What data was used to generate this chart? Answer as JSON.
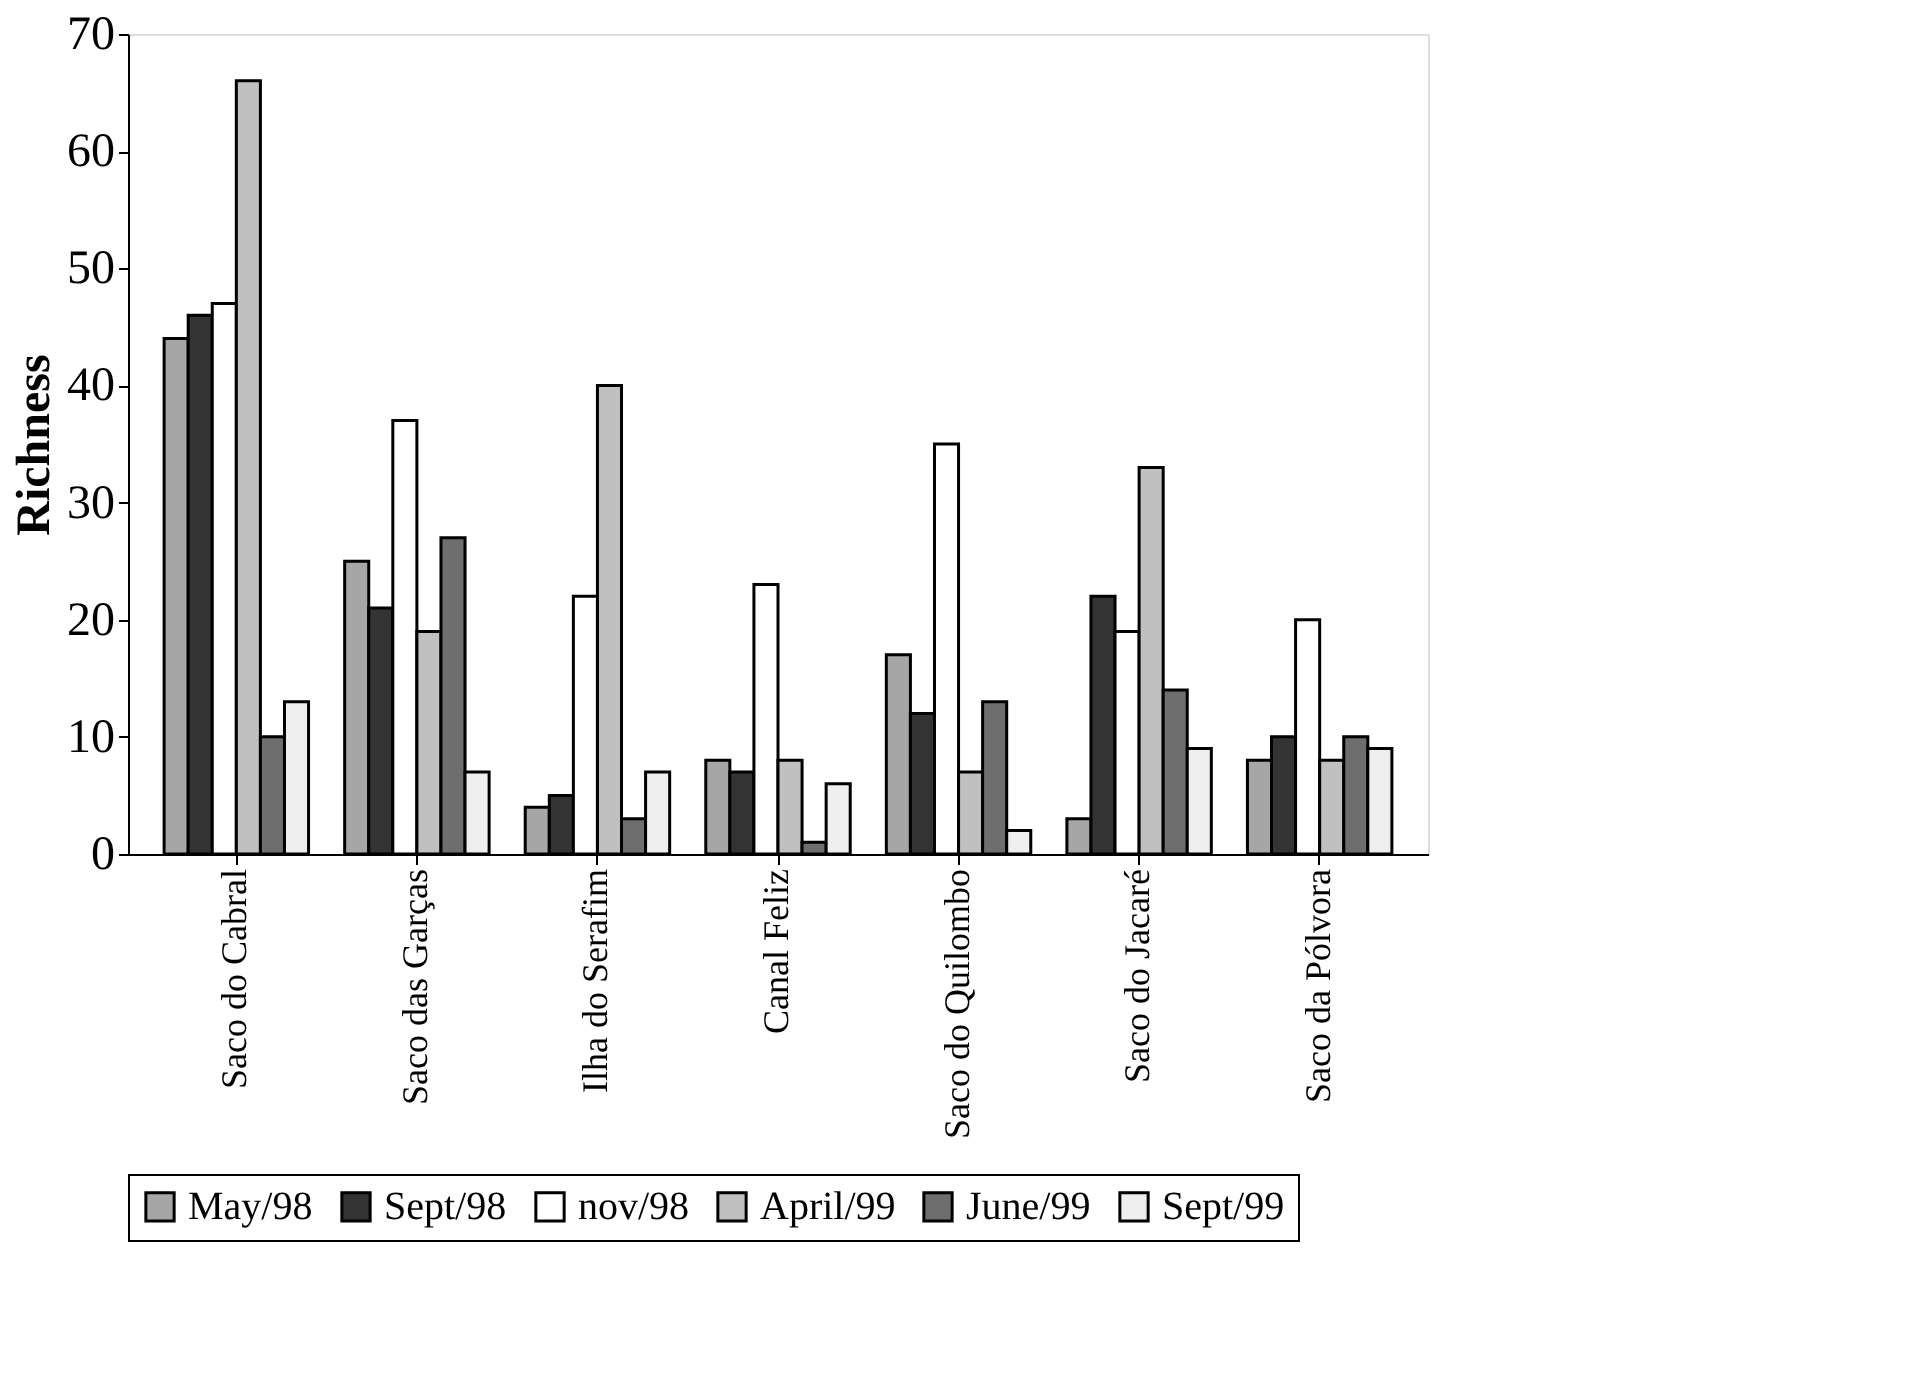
{
  "chart_data": {
    "type": "bar",
    "ylabel": "Richness",
    "categories": [
      "Saco do Cabral",
      "Saco das Garças",
      "Ilha do Serafim",
      "Canal Feliz",
      "Saco do Quilombo",
      "Saco do Jacaré",
      "Saco da Pólvora"
    ],
    "series": [
      {
        "name": "May/98",
        "color": "#a6a6a6",
        "values": [
          44,
          25,
          4,
          8,
          17,
          3,
          8
        ]
      },
      {
        "name": "Sept/98",
        "color": "#333333",
        "values": [
          46,
          21,
          5,
          7,
          12,
          22,
          10
        ]
      },
      {
        "name": "nov/98",
        "color": "#ffffff",
        "values": [
          47,
          37,
          22,
          23,
          35,
          19,
          20
        ]
      },
      {
        "name": "April/99",
        "color": "#c0c0c0",
        "values": [
          66,
          19,
          40,
          8,
          7,
          33,
          8
        ]
      },
      {
        "name": "June/99",
        "color": "#6e6e6e",
        "values": [
          10,
          27,
          3,
          1,
          13,
          14,
          10
        ]
      },
      {
        "name": "Sept/99",
        "color": "#eeeeee",
        "values": [
          13,
          7,
          7,
          6,
          2,
          9,
          9
        ]
      }
    ],
    "ylim": [
      0,
      70
    ],
    "yticks": [
      0,
      10,
      20,
      30,
      40,
      50,
      60,
      70
    ],
    "grid": false,
    "legend": "bottom"
  }
}
